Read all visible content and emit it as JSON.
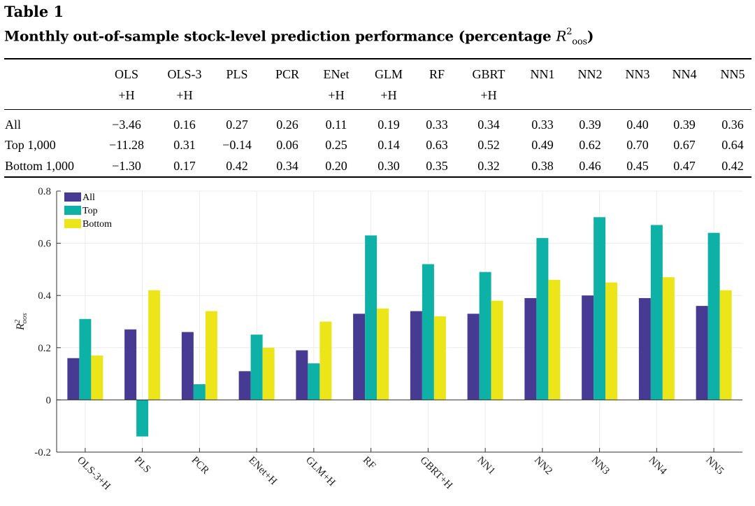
{
  "table": {
    "label": "Table 1",
    "caption_text": "Monthly out-of-sample stock-level prediction performance (percentage ",
    "caption_var": "R",
    "caption_sup": "2",
    "caption_sub": "oos",
    "caption_close": ")",
    "columns": [
      {
        "line1": "OLS",
        "line2": "+H"
      },
      {
        "line1": "OLS-3",
        "line2": "+H"
      },
      {
        "line1": "PLS",
        "line2": ""
      },
      {
        "line1": "PCR",
        "line2": ""
      },
      {
        "line1": "ENet",
        "line2": "+H"
      },
      {
        "line1": "GLM",
        "line2": "+H"
      },
      {
        "line1": "RF",
        "line2": ""
      },
      {
        "line1": "GBRT",
        "line2": "+H"
      },
      {
        "line1": "NN1",
        "line2": ""
      },
      {
        "line1": "NN2",
        "line2": ""
      },
      {
        "line1": "NN3",
        "line2": ""
      },
      {
        "line1": "NN4",
        "line2": ""
      },
      {
        "line1": "NN5",
        "line2": ""
      }
    ],
    "rows": [
      {
        "label": "All",
        "values": [
          "−3.46",
          "0.16",
          "0.27",
          "0.26",
          "0.11",
          "0.19",
          "0.33",
          "0.34",
          "0.33",
          "0.39",
          "0.40",
          "0.39",
          "0.36"
        ]
      },
      {
        "label": "Top 1,000",
        "values": [
          "−11.28",
          "0.31",
          "−0.14",
          "0.06",
          "0.25",
          "0.14",
          "0.63",
          "0.52",
          "0.49",
          "0.62",
          "0.70",
          "0.67",
          "0.64"
        ]
      },
      {
        "label": "Bottom 1,000",
        "values": [
          "−1.30",
          "0.17",
          "0.42",
          "0.34",
          "0.20",
          "0.30",
          "0.35",
          "0.32",
          "0.38",
          "0.46",
          "0.45",
          "0.47",
          "0.42"
        ]
      }
    ]
  },
  "chart_data": {
    "type": "bar",
    "title": "",
    "xlabel": "",
    "ylabel_var": "R",
    "ylabel_sup": "2",
    "ylabel_sub": "oos",
    "categories": [
      "OLS-3+H",
      "PLS",
      "PCR",
      "ENet+H",
      "GLM+H",
      "RF",
      "GBRT+H",
      "NN1",
      "NN2",
      "NN3",
      "NN4",
      "NN5"
    ],
    "series": [
      {
        "name": "All",
        "color": "#463a93",
        "values": [
          0.16,
          0.27,
          0.26,
          0.11,
          0.19,
          0.33,
          0.34,
          0.33,
          0.39,
          0.4,
          0.39,
          0.36
        ]
      },
      {
        "name": "Top",
        "color": "#0eb1a6",
        "values": [
          0.31,
          -0.14,
          0.06,
          0.25,
          0.14,
          0.63,
          0.52,
          0.49,
          0.62,
          0.7,
          0.67,
          0.64
        ]
      },
      {
        "name": "Bottom",
        "color": "#ece51a",
        "values": [
          0.17,
          0.42,
          0.34,
          0.2,
          0.3,
          0.35,
          0.32,
          0.38,
          0.46,
          0.45,
          0.47,
          0.42
        ]
      }
    ],
    "ylim": [
      -0.2,
      0.8
    ],
    "yticks": [
      -0.2,
      0,
      0.2,
      0.4,
      0.6,
      0.8
    ],
    "ytick_labels": [
      "-0.2",
      "0",
      "0.2",
      "0.4",
      "0.6",
      "0.8"
    ],
    "grid": true,
    "legend": "top-left"
  }
}
